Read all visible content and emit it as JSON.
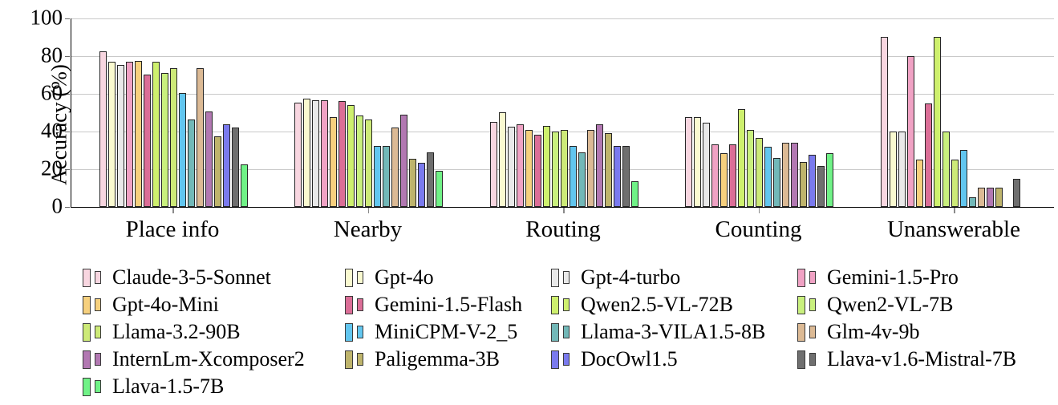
{
  "chart_data": {
    "type": "bar",
    "title": "",
    "ylabel": "Accuracy (%)",
    "xlabel": "",
    "ylim": [
      0,
      100
    ],
    "yticks": [
      0,
      20,
      40,
      60,
      80,
      100
    ],
    "grid": true,
    "legend_position": "below",
    "categories": [
      "Place info",
      "Nearby",
      "Routing",
      "Counting",
      "Unanswerable"
    ],
    "series": [
      {
        "name": "Claude-3-5-Sonnet",
        "color": "#F8D6E0",
        "values": [
          82.5,
          55.5,
          45,
          47.5,
          90
        ]
      },
      {
        "name": "Gpt-4o",
        "color": "#FAFAD0",
        "values": [
          77,
          57.5,
          50,
          47.5,
          40
        ]
      },
      {
        "name": "Gpt-4-turbo",
        "color": "#E9E9E9",
        "values": [
          75.5,
          56.5,
          42.5,
          44.5,
          40
        ]
      },
      {
        "name": "Gemini-1.5-Pro",
        "color": "#F0A2C4",
        "values": [
          77,
          56.5,
          44,
          33,
          80
        ]
      },
      {
        "name": "Gpt-4o-Mini",
        "color": "#F6D07E",
        "values": [
          77.5,
          47.5,
          41,
          28.5,
          25
        ]
      },
      {
        "name": "Gemini-1.5-Flash",
        "color": "#DB6E97",
        "values": [
          70,
          56,
          38.5,
          33,
          55
        ]
      },
      {
        "name": "Qwen2.5-VL-72B",
        "color": "#CEF06E",
        "values": [
          77,
          54,
          43,
          52,
          90
        ]
      },
      {
        "name": "Qwen2-VL-7B",
        "color": "#C9F07E",
        "values": [
          71,
          48.5,
          40,
          41,
          40
        ]
      },
      {
        "name": "Llama-3.2-90B",
        "color": "#CDEA78",
        "values": [
          73.5,
          46.5,
          41,
          36.5,
          25
        ]
      },
      {
        "name": "MiniCPM-V-2_5",
        "color": "#62C6EF",
        "values": [
          60.5,
          32.5,
          32.5,
          32,
          30
        ]
      },
      {
        "name": "Llama-3-VILA1.5-8B",
        "color": "#72B8B8",
        "values": [
          46.5,
          32.5,
          29,
          26,
          5
        ]
      },
      {
        "name": "Glm-4v-9b",
        "color": "#DCBA95",
        "values": [
          73.5,
          42,
          41,
          34,
          10
        ]
      },
      {
        "name": "InternLm-Xcomposer2",
        "color": "#B278B2",
        "values": [
          50.5,
          49,
          44,
          34,
          10
        ]
      },
      {
        "name": "Paligemma-3B",
        "color": "#BEB46C",
        "values": [
          37.5,
          25.5,
          39,
          24,
          10
        ]
      },
      {
        "name": "DocOwl1.5",
        "color": "#7A7AEE",
        "values": [
          44,
          23.5,
          32.5,
          27.5,
          0
        ]
      },
      {
        "name": "Llava-v1.6-Mistral-7B",
        "color": "#6F6F6F",
        "values": [
          42,
          29,
          32.5,
          21.5,
          15
        ]
      },
      {
        "name": "Llava-1.5-7B",
        "color": "#70F287",
        "values": [
          22.5,
          19,
          13.5,
          28.5,
          0
        ]
      }
    ]
  }
}
